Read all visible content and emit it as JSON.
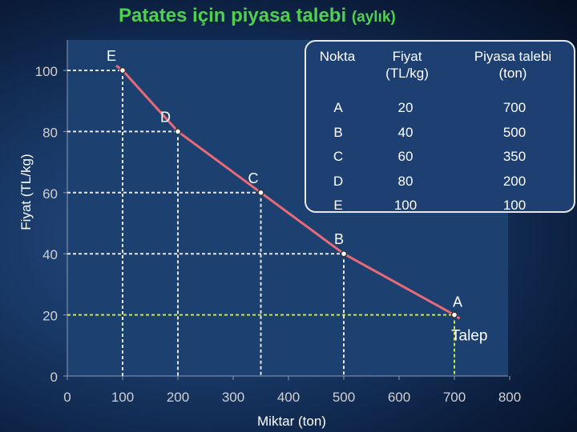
{
  "title": {
    "main": "Patates için piyasa talebi",
    "paren": "(aylık)"
  },
  "colors": {
    "title": "#4fd04f",
    "curve": "#e86a78",
    "guide": "#e8e8e8",
    "guide_a": "#c8e84a",
    "label": "#ffffff",
    "tick": "#d0d0d0",
    "plot_bg": "#1c4170"
  },
  "chart_data": {
    "type": "line",
    "xlabel": "Miktar (ton)",
    "ylabel": "Fiyat (TL/kg)",
    "xlim": [
      0,
      800
    ],
    "ylim": [
      0,
      100
    ],
    "x_ticks": [
      "0",
      "100",
      "200",
      "300",
      "400",
      "500",
      "600",
      "700",
      "800"
    ],
    "y_ticks": [
      "0",
      "20",
      "40",
      "60",
      "80",
      "100"
    ],
    "series": [
      {
        "name": "Talep",
        "points": [
          {
            "label": "E",
            "x": 100,
            "y": 100
          },
          {
            "label": "D",
            "x": 200,
            "y": 80
          },
          {
            "label": "C",
            "x": 350,
            "y": 60
          },
          {
            "label": "B",
            "x": 500,
            "y": 40
          },
          {
            "label": "A",
            "x": 700,
            "y": 20
          }
        ]
      }
    ],
    "table": {
      "headers": [
        "Nokta",
        "Fiyat\n(TL/kg)",
        "Piyasa talebi\n(ton)"
      ],
      "points": [
        "A",
        "B",
        "C",
        "D",
        "E"
      ],
      "prices": [
        "20",
        "40",
        "60",
        "80",
        "100"
      ],
      "quantities": [
        "700",
        "500",
        "350",
        "200",
        "100"
      ]
    }
  }
}
